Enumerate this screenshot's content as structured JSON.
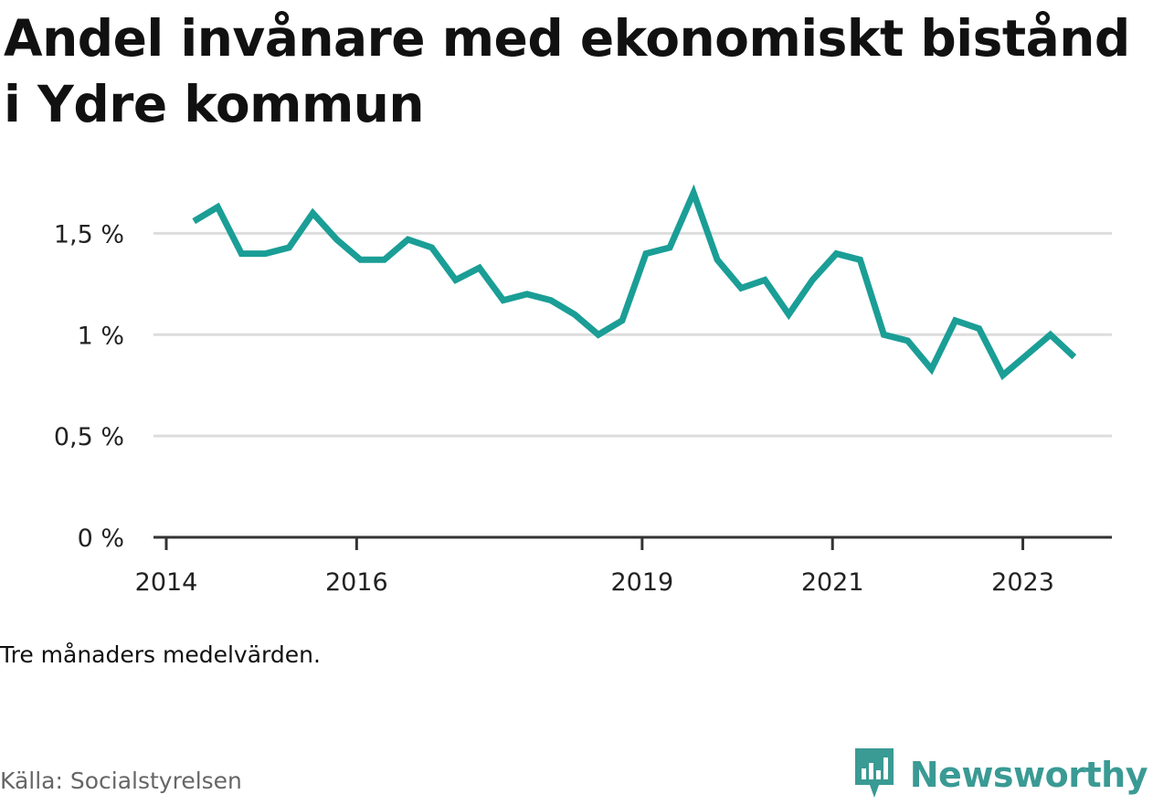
{
  "title": "Andel invånare med ekonomiskt bistånd i Ydre kommun",
  "note": "Tre månaders medelvärden.",
  "source": "Källa: Socialstyrelsen",
  "brand": {
    "name": "Newsworthy",
    "icon": "newsworthy-logo-icon",
    "color": "#3a9a94"
  },
  "colors": {
    "line": "#1a9e96",
    "grid": "#dddddd",
    "axis": "#333333"
  },
  "chart_data": {
    "type": "line",
    "title": "Andel invånare med ekonomiskt bistånd i Ydre kommun",
    "xlabel": "",
    "ylabel": "",
    "ylim": [
      0,
      1.75
    ],
    "yticks": [
      0,
      0.5,
      1,
      1.5
    ],
    "ytick_labels": [
      "0 %",
      "0,5 %",
      "1 %",
      "1,5 %"
    ],
    "xlim": [
      2014,
      2024.07
    ],
    "xticks": [
      2014,
      2016,
      2019,
      2021,
      2023
    ],
    "xtick_labels": [
      "2014",
      "2016",
      "2019",
      "2021",
      "2023"
    ],
    "grid": true,
    "series": [
      {
        "x": [
          2014.29,
          2014.54,
          2014.79,
          2015.04,
          2015.29,
          2015.54,
          2015.79,
          2016.04,
          2016.29,
          2016.54,
          2016.79,
          2017.04,
          2017.29,
          2017.54,
          2017.79,
          2018.04,
          2018.29,
          2018.54,
          2018.79,
          2019.04,
          2019.29,
          2019.54,
          2019.79,
          2020.04,
          2020.29,
          2020.54,
          2020.79,
          2021.04,
          2021.29,
          2021.54,
          2021.79,
          2022.04,
          2022.29,
          2022.54,
          2022.79,
          2023.04,
          2023.29,
          2023.54
        ],
        "y": [
          1.56,
          1.63,
          1.4,
          1.4,
          1.43,
          1.6,
          1.47,
          1.37,
          1.37,
          1.47,
          1.43,
          1.27,
          1.33,
          1.17,
          1.2,
          1.17,
          1.1,
          1.0,
          1.07,
          1.4,
          1.43,
          1.7,
          1.37,
          1.23,
          1.27,
          1.1,
          1.27,
          1.4,
          1.37,
          1.0,
          0.97,
          0.83,
          1.07,
          1.03,
          0.8,
          0.9,
          1.0,
          0.89
        ]
      }
    ]
  }
}
